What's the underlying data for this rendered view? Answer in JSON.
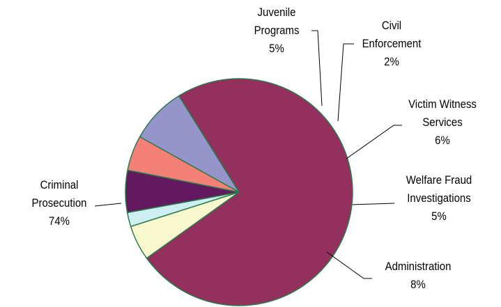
{
  "chart_data": {
    "type": "pie",
    "title": "",
    "legend": "none",
    "slices": [
      {
        "label_lines": [
          "Criminal",
          "Prosecution"
        ],
        "percent_label": "74%",
        "value": 74,
        "color": "#93305e"
      },
      {
        "label_lines": [
          "Juvenile",
          "Programs"
        ],
        "percent_label": "5%",
        "value": 5,
        "color": "#f8f8ce"
      },
      {
        "label_lines": [
          "Civil",
          "Enforcement"
        ],
        "percent_label": "2%",
        "value": 2,
        "color": "#cdeff2"
      },
      {
        "label_lines": [
          "Victim Witness",
          "Services"
        ],
        "percent_label": "6%",
        "value": 6,
        "color": "#62195e"
      },
      {
        "label_lines": [
          "Welfare Fraud",
          "Investigations"
        ],
        "percent_label": "5%",
        "value": 5,
        "color": "#f58078"
      },
      {
        "label_lines": [
          "Administration"
        ],
        "percent_label": "8%",
        "value": 8,
        "color": "#9595cb"
      }
    ],
    "slice_outline_color": "#2a7a4a",
    "leader_line_color": "#000000"
  }
}
